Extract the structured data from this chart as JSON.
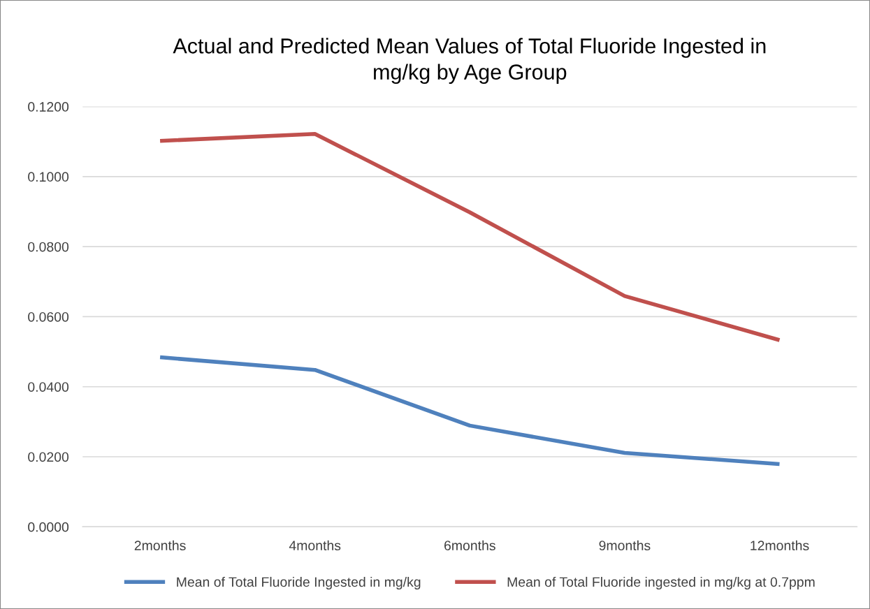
{
  "chart_data": {
    "type": "line",
    "title": "Actual and Predicted Mean Values of Total Fluoride Ingested in\nmg/kg by Age Group",
    "categories": [
      "2months",
      "4months",
      "6months",
      "9months",
      "12months"
    ],
    "series": [
      {
        "name": "Mean of Total Fluoride Ingested in mg/kg",
        "color": "#4f81bd",
        "values": [
          0.0484,
          0.0448,
          0.0289,
          0.0211,
          0.0179
        ]
      },
      {
        "name": "Mean of Total Fluoride ingested in mg/kg at 0.7ppm",
        "color": "#c0504d",
        "values": [
          0.1102,
          0.1122,
          0.0898,
          0.0659,
          0.0533
        ]
      }
    ],
    "ylim": [
      0,
      0.12
    ],
    "yticks": [
      {
        "value": 0,
        "label": "0.0000"
      },
      {
        "value": 0.02,
        "label": "0.0200"
      },
      {
        "value": 0.04,
        "label": "0.0400"
      },
      {
        "value": 0.06,
        "label": "0.0600"
      },
      {
        "value": 0.08,
        "label": "0.0800"
      },
      {
        "value": 0.1,
        "label": "0.1000"
      },
      {
        "value": 0.12,
        "label": "0.1200"
      }
    ],
    "grid": "y",
    "legend": "bottom",
    "marker": "none",
    "line_style": "solid"
  }
}
